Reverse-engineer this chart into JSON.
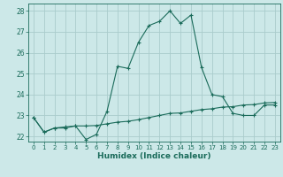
{
  "title": "",
  "xlabel": "Humidex (Indice chaleur)",
  "ylabel": "",
  "bg_color": "#cce8e8",
  "grid_color": "#aacccc",
  "line_color": "#1a6b5a",
  "xlim": [
    -0.5,
    23.5
  ],
  "ylim": [
    21.75,
    28.35
  ],
  "yticks": [
    22,
    23,
    24,
    25,
    26,
    27,
    28
  ],
  "xticks": [
    0,
    1,
    2,
    3,
    4,
    5,
    6,
    7,
    8,
    9,
    10,
    11,
    12,
    13,
    14,
    15,
    16,
    17,
    18,
    19,
    20,
    21,
    22,
    23
  ],
  "line1_x": [
    0,
    1,
    2,
    3,
    4,
    5,
    6,
    7,
    8,
    9,
    10,
    11,
    12,
    13,
    14,
    15,
    16,
    17,
    18,
    19,
    20,
    21,
    22,
    23
  ],
  "line1_y": [
    22.9,
    22.2,
    22.4,
    22.4,
    22.5,
    21.85,
    22.1,
    23.2,
    25.35,
    25.25,
    26.5,
    27.3,
    27.5,
    28.0,
    27.4,
    27.8,
    25.3,
    24.0,
    23.9,
    23.1,
    23.0,
    23.0,
    23.5,
    23.5
  ],
  "line2_x": [
    0,
    1,
    2,
    3,
    4,
    5,
    6,
    7,
    8,
    9,
    10,
    11,
    12,
    13,
    14,
    15,
    16,
    17,
    18,
    19,
    20,
    21,
    22,
    23
  ],
  "line2_y": [
    22.9,
    22.2,
    22.4,
    22.45,
    22.5,
    22.5,
    22.52,
    22.6,
    22.68,
    22.72,
    22.8,
    22.9,
    23.0,
    23.1,
    23.12,
    23.2,
    23.28,
    23.32,
    23.4,
    23.42,
    23.5,
    23.52,
    23.6,
    23.62
  ]
}
